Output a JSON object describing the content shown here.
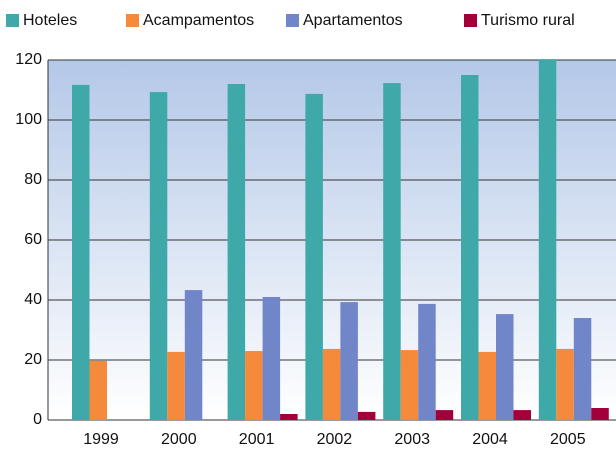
{
  "chart_data": {
    "type": "bar",
    "categories": [
      "1999",
      "2000",
      "2001",
      "2002",
      "2003",
      "2004",
      "2005"
    ],
    "series": [
      {
        "name": "Hoteles",
        "color": "#3fa9aa",
        "values": [
          111.7,
          109.3,
          112,
          108.7,
          112.3,
          115,
          120.3
        ]
      },
      {
        "name": "Acampamentos",
        "color": "#f58a3d",
        "values": [
          19.7,
          22.7,
          23,
          23.7,
          23.3,
          22.7,
          23.7
        ]
      },
      {
        "name": "Apartamentos",
        "color": "#7086c9",
        "values": [
          null,
          43.3,
          41,
          39.3,
          38.7,
          35.3,
          34
        ]
      },
      {
        "name": "Turismo rural",
        "color": "#a3003b",
        "values": [
          null,
          null,
          2,
          2.7,
          3.3,
          3.3,
          4
        ]
      }
    ],
    "ylim": [
      0,
      120
    ],
    "yticks": [
      0,
      20,
      40,
      60,
      80,
      100,
      120
    ],
    "grid": true,
    "legend": "top"
  }
}
